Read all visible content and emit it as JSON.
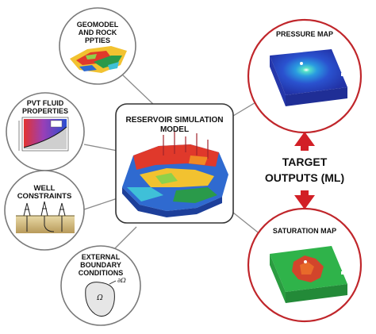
{
  "inputs": {
    "geomodel": {
      "line1": "GEOMODEL",
      "line2": "AND ROCK",
      "line3": "PPTIES"
    },
    "pvt": {
      "line1": "PVT FLUID",
      "line2": "PROPERTIES"
    },
    "well": {
      "line1": "WELL",
      "line2": "CONSTRAINTS"
    },
    "boundary": {
      "line1": "EXTERNAL",
      "line2": "BOUNDARY",
      "line3": "CONDITIONS",
      "omega": "Ω",
      "d_omega": "∂Ω"
    }
  },
  "center": {
    "line1": "RESERVOIR SIMULATION",
    "line2": "MODEL"
  },
  "outputs": {
    "pressure": {
      "title": "PRESSURE MAP"
    },
    "saturation": {
      "title": "SATURATION MAP"
    },
    "target_line1": "TARGET",
    "target_line2": "OUTPUTS (ML)"
  },
  "colors": {
    "input_circle_border": "#7a7a7a",
    "output_circle_border": "#c0262b",
    "arrow": "#d21f26",
    "connector": "#8a8a8a",
    "pressure_field": "#2b3fc2",
    "saturation_field": "#2fb34a",
    "saturation_front": "#d2452b"
  }
}
